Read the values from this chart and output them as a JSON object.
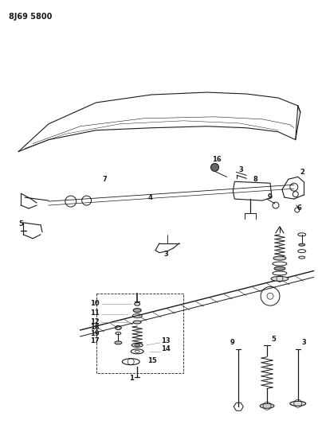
{
  "title": "8J69 5800",
  "bg": "#ffffff",
  "lc": "#1a1a1a",
  "figsize": [
    3.99,
    5.33
  ],
  "dpi": 100
}
